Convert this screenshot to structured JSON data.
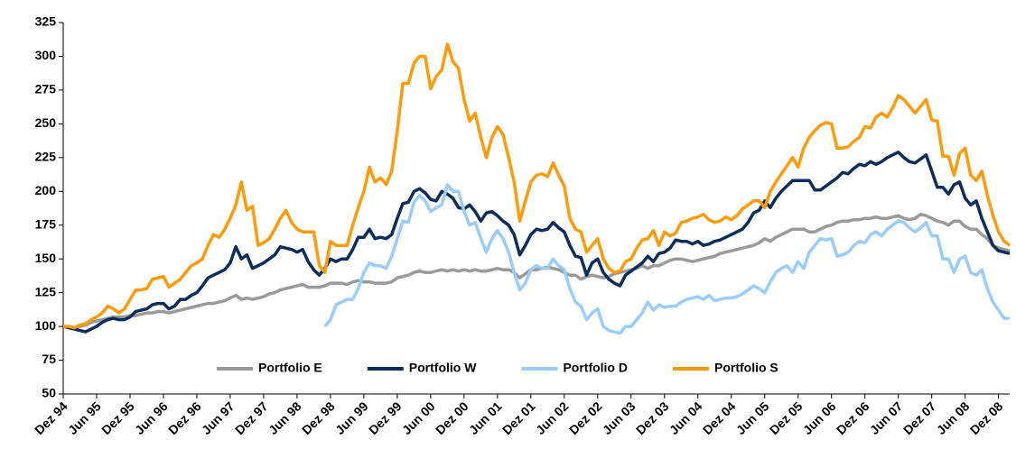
{
  "chart_data": {
    "type": "line",
    "categories": [
      "Dez 94",
      null,
      null,
      null,
      null,
      null,
      "Jun 95",
      null,
      null,
      null,
      null,
      null,
      "Dez 95",
      null,
      null,
      null,
      null,
      null,
      "Jun 96",
      null,
      null,
      null,
      null,
      null,
      "Dez 96",
      null,
      null,
      null,
      null,
      null,
      "Jun 97",
      null,
      null,
      null,
      null,
      null,
      "Dez 97",
      null,
      null,
      null,
      null,
      null,
      "Jun 98",
      null,
      null,
      null,
      null,
      null,
      "Dez 98",
      null,
      null,
      null,
      null,
      null,
      "Jun 99",
      null,
      null,
      null,
      null,
      null,
      "Dez 99",
      null,
      null,
      null,
      null,
      null,
      "Jun 00",
      null,
      null,
      null,
      null,
      null,
      "Dez 00",
      null,
      null,
      null,
      null,
      null,
      "Jun 01",
      null,
      null,
      null,
      null,
      null,
      "Dez 01",
      null,
      null,
      null,
      null,
      null,
      "Jun 02",
      null,
      null,
      null,
      null,
      null,
      "Dez 02",
      null,
      null,
      null,
      null,
      null,
      "Jun 03",
      null,
      null,
      null,
      null,
      null,
      "Dez 03",
      null,
      null,
      null,
      null,
      null,
      "Jun 04",
      null,
      null,
      null,
      null,
      null,
      "Dez 04",
      null,
      null,
      null,
      null,
      null,
      "Jun 05",
      null,
      null,
      null,
      null,
      null,
      "Dez 05",
      null,
      null,
      null,
      null,
      null,
      "Jun 06",
      null,
      null,
      null,
      null,
      null,
      "Dez 06",
      null,
      null,
      null,
      null,
      null,
      "Jun 07",
      null,
      null,
      null,
      null,
      null,
      "Dez 07",
      null,
      null,
      null,
      null,
      null,
      "Jun 08",
      null,
      null,
      null,
      null,
      null,
      "Dez 08",
      null,
      null
    ],
    "series": [
      {
        "name": "Portfolio E",
        "color": "#9a9a9a",
        "values": [
          100,
          100,
          99,
          100,
          101,
          103,
          104,
          105,
          106,
          107,
          107,
          107,
          108,
          108,
          109,
          110,
          110,
          111,
          111,
          110,
          111,
          112,
          113,
          114,
          115,
          116,
          117,
          117,
          118,
          119,
          121,
          123,
          120,
          121,
          120,
          121,
          122,
          124,
          125,
          127,
          128,
          129,
          130,
          131,
          129,
          129,
          129,
          130,
          132,
          132,
          132,
          131,
          133,
          134,
          133,
          133,
          132,
          132,
          132,
          133,
          136,
          137,
          138,
          140,
          141,
          140,
          140,
          141,
          142,
          141,
          142,
          141,
          142,
          141,
          142,
          141,
          141,
          142,
          143,
          142,
          142,
          140,
          136,
          139,
          142,
          142,
          143,
          144,
          143,
          142,
          140,
          138,
          138,
          135,
          137,
          138,
          137,
          136,
          137,
          139,
          140,
          141,
          142,
          143,
          145,
          143,
          145,
          145,
          147,
          149,
          150,
          150,
          149,
          148,
          149,
          150,
          151,
          152,
          154,
          155,
          156,
          157,
          158,
          159,
          160,
          162,
          165,
          163,
          166,
          168,
          170,
          172,
          172,
          172,
          170,
          170,
          172,
          174,
          175,
          177,
          178,
          178,
          179,
          179,
          180,
          180,
          181,
          180,
          180,
          181,
          182,
          180,
          179,
          180,
          183,
          182,
          180,
          178,
          177,
          175,
          178,
          178,
          174,
          172,
          172,
          168,
          165,
          160,
          158,
          157,
          156
        ]
      },
      {
        "name": "Portfolio W",
        "color": "#0b2d5b",
        "values": [
          100,
          99,
          98,
          97,
          96,
          98,
          100,
          103,
          105,
          106,
          105,
          105,
          107,
          111,
          112,
          113,
          116,
          117,
          117,
          113,
          115,
          120,
          120,
          123,
          125,
          130,
          136,
          138,
          140,
          142,
          147,
          159,
          150,
          153,
          143,
          145,
          147,
          150,
          153,
          159,
          158,
          157,
          155,
          157,
          148,
          142,
          138,
          143,
          150,
          148,
          150,
          150,
          157,
          166,
          166,
          172,
          165,
          166,
          165,
          168,
          180,
          191,
          192,
          200,
          202,
          199,
          194,
          193,
          200,
          198,
          195,
          188,
          187,
          190,
          185,
          178,
          184,
          185,
          182,
          178,
          175,
          168,
          153,
          160,
          168,
          172,
          171,
          172,
          177,
          173,
          170,
          160,
          152,
          151,
          138,
          147,
          150,
          140,
          135,
          132,
          130,
          138,
          141,
          144,
          147,
          152,
          148,
          154,
          155,
          158,
          164,
          163,
          163,
          161,
          163,
          160,
          161,
          163,
          164,
          166,
          168,
          170,
          172,
          177,
          184,
          186,
          193,
          188,
          195,
          200,
          204,
          208,
          208,
          208,
          208,
          201,
          201,
          204,
          207,
          210,
          214,
          213,
          217,
          220,
          219,
          222,
          220,
          222,
          225,
          227,
          229,
          225,
          222,
          221,
          224,
          227,
          215,
          203,
          203,
          198,
          205,
          207,
          195,
          190,
          193,
          180,
          170,
          160,
          156,
          155,
          154
        ]
      },
      {
        "name": "Portfolio D",
        "color": "#99ccff",
        "values": [
          null,
          null,
          null,
          null,
          null,
          null,
          null,
          null,
          null,
          null,
          null,
          null,
          null,
          null,
          null,
          null,
          null,
          null,
          null,
          null,
          null,
          null,
          null,
          null,
          null,
          null,
          null,
          null,
          null,
          null,
          null,
          null,
          null,
          null,
          null,
          null,
          null,
          null,
          null,
          null,
          null,
          null,
          null,
          null,
          null,
          null,
          null,
          100,
          105,
          116,
          118,
          120,
          120,
          128,
          140,
          147,
          145,
          145,
          143,
          152,
          165,
          178,
          177,
          192,
          197,
          193,
          185,
          188,
          190,
          205,
          200,
          200,
          185,
          175,
          177,
          165,
          155,
          165,
          171,
          165,
          155,
          140,
          127,
          132,
          142,
          145,
          143,
          143,
          150,
          145,
          142,
          128,
          118,
          115,
          105,
          110,
          113,
          100,
          97,
          96,
          95,
          100,
          100,
          105,
          110,
          118,
          112,
          116,
          114,
          115,
          115,
          118,
          120,
          121,
          122,
          120,
          123,
          119,
          120,
          121,
          121,
          122,
          124,
          127,
          130,
          128,
          125,
          133,
          140,
          143,
          145,
          140,
          148,
          143,
          155,
          160,
          165,
          164,
          165,
          152,
          153,
          155,
          160,
          163,
          162,
          168,
          170,
          167,
          172,
          175,
          178,
          177,
          173,
          170,
          173,
          177,
          167,
          167,
          150,
          150,
          140,
          150,
          152,
          140,
          138,
          142,
          128,
          118,
          112,
          106,
          106
        ]
      },
      {
        "name": "Portfolio S",
        "color": "#ff9a0a",
        "values": [
          100,
          100,
          99,
          101,
          102,
          105,
          107,
          110,
          115,
          113,
          110,
          113,
          120,
          127,
          127,
          128,
          135,
          136,
          137,
          129,
          132,
          135,
          140,
          145,
          147,
          150,
          160,
          168,
          166,
          172,
          180,
          190,
          207,
          186,
          189,
          160,
          162,
          165,
          172,
          180,
          186,
          177,
          172,
          170,
          170,
          170,
          145,
          140,
          163,
          160,
          160,
          160,
          175,
          188,
          200,
          218,
          207,
          210,
          205,
          215,
          245,
          280,
          280,
          295,
          300,
          300,
          276,
          285,
          290,
          309,
          296,
          291,
          268,
          252,
          258,
          240,
          225,
          240,
          248,
          242,
          225,
          207,
          178,
          193,
          207,
          212,
          213,
          211,
          221,
          212,
          204,
          180,
          172,
          170,
          155,
          160,
          165,
          150,
          143,
          140,
          141,
          148,
          150,
          158,
          164,
          165,
          171,
          160,
          170,
          167,
          169,
          177,
          178,
          180,
          181,
          183,
          179,
          177,
          178,
          181,
          179,
          182,
          187,
          190,
          193,
          193,
          188,
          200,
          207,
          213,
          219,
          225,
          218,
          232,
          240,
          245,
          249,
          251,
          250,
          232,
          232,
          233,
          237,
          240,
          248,
          247,
          255,
          258,
          255,
          262,
          271,
          268,
          263,
          258,
          263,
          268,
          253,
          252,
          226,
          226,
          212,
          228,
          232,
          212,
          208,
          215,
          197,
          182,
          170,
          163,
          160
        ]
      }
    ],
    "ylim": [
      50,
      325
    ],
    "yticks": [
      50,
      75,
      100,
      125,
      150,
      175,
      200,
      225,
      250,
      275,
      300,
      325
    ],
    "grid": false,
    "legend": "bottom"
  }
}
